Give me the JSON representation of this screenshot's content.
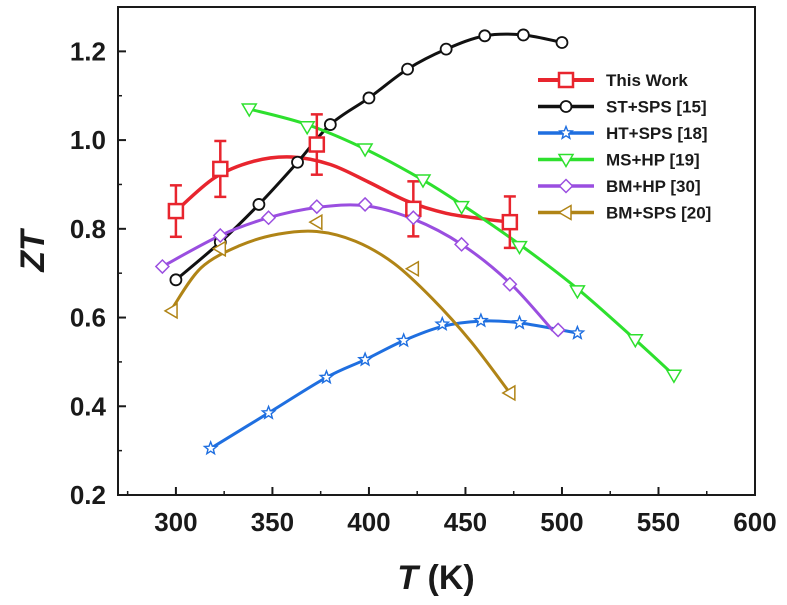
{
  "chart_data": {
    "type": "line",
    "xlabel_italic": "T",
    "xlabel_unit": " (K)",
    "ylabel": "ZT",
    "xlim": [
      270,
      600
    ],
    "ylim": [
      0.2,
      1.3
    ],
    "xticks": [
      300,
      350,
      400,
      450,
      500,
      550,
      600
    ],
    "yticks": [
      0.2,
      0.4,
      0.6,
      0.8,
      1.0,
      1.2
    ],
    "xtick_labels": [
      "300",
      "350",
      "400",
      "450",
      "500",
      "550",
      "600"
    ],
    "ytick_labels": [
      "0.2",
      "0.4",
      "0.6",
      "0.8",
      "1.0",
      "1.2"
    ],
    "legend_position": "top-right",
    "series": [
      {
        "name": "This Work",
        "color": "#e8252e",
        "marker": "square",
        "x": [
          300,
          323,
          373,
          423,
          473
        ],
        "y": [
          0.84,
          0.935,
          0.99,
          0.845,
          0.815
        ],
        "yerr": [
          0.058,
          0.063,
          0.068,
          0.062,
          0.058
        ],
        "curve": [
          [
            300,
            0.84
          ],
          [
            320,
            0.915
          ],
          [
            340,
            0.952
          ],
          [
            360,
            0.962
          ],
          [
            380,
            0.945
          ],
          [
            400,
            0.905
          ],
          [
            420,
            0.862
          ],
          [
            440,
            0.835
          ],
          [
            460,
            0.822
          ],
          [
            473,
            0.815
          ]
        ]
      },
      {
        "name": "ST+SPS [15]",
        "color": "#111111",
        "marker": "circle",
        "x": [
          300,
          323,
          343,
          363,
          380,
          400,
          420,
          440,
          460,
          480,
          500
        ],
        "y": [
          0.685,
          0.77,
          0.855,
          0.95,
          1.035,
          1.095,
          1.16,
          1.205,
          1.235,
          1.237,
          1.22
        ],
        "curve": [
          [
            300,
            0.685
          ],
          [
            323,
            0.77
          ],
          [
            343,
            0.855
          ],
          [
            363,
            0.95
          ],
          [
            380,
            1.035
          ],
          [
            400,
            1.095
          ],
          [
            420,
            1.16
          ],
          [
            440,
            1.205
          ],
          [
            460,
            1.235
          ],
          [
            480,
            1.237
          ],
          [
            500,
            1.22
          ]
        ]
      },
      {
        "name": "HT+SPS [18]",
        "color": "#1f6fe0",
        "marker": "star",
        "x": [
          318,
          348,
          378,
          398,
          418,
          438,
          458,
          478,
          508
        ],
        "y": [
          0.305,
          0.385,
          0.465,
          0.505,
          0.548,
          0.585,
          0.593,
          0.588,
          0.565
        ],
        "curve": [
          [
            318,
            0.305
          ],
          [
            348,
            0.385
          ],
          [
            378,
            0.465
          ],
          [
            398,
            0.505
          ],
          [
            418,
            0.548
          ],
          [
            438,
            0.58
          ],
          [
            458,
            0.592
          ],
          [
            478,
            0.588
          ],
          [
            508,
            0.565
          ]
        ]
      },
      {
        "name": "MS+HP [19]",
        "color": "#2ee02e",
        "marker": "triangle-down",
        "x": [
          338,
          368,
          398,
          428,
          448,
          478,
          508,
          538,
          558
        ],
        "y": [
          1.07,
          1.03,
          0.98,
          0.91,
          0.85,
          0.76,
          0.66,
          0.55,
          0.47
        ],
        "curve": [
          [
            338,
            1.07
          ],
          [
            368,
            1.035
          ],
          [
            398,
            0.98
          ],
          [
            428,
            0.91
          ],
          [
            448,
            0.855
          ],
          [
            478,
            0.765
          ],
          [
            508,
            0.665
          ],
          [
            538,
            0.55
          ],
          [
            558,
            0.47
          ]
        ]
      },
      {
        "name": "BM+HP [30]",
        "color": "#9a4ee0",
        "marker": "diamond",
        "x": [
          293,
          323,
          348,
          373,
          398,
          423,
          448,
          473,
          498
        ],
        "y": [
          0.715,
          0.785,
          0.825,
          0.85,
          0.855,
          0.825,
          0.765,
          0.675,
          0.572
        ],
        "curve": [
          [
            293,
            0.715
          ],
          [
            323,
            0.785
          ],
          [
            348,
            0.825
          ],
          [
            373,
            0.848
          ],
          [
            398,
            0.852
          ],
          [
            423,
            0.822
          ],
          [
            448,
            0.765
          ],
          [
            473,
            0.678
          ],
          [
            495,
            0.572
          ]
        ]
      },
      {
        "name": "BM+SPS [20]",
        "color": "#b08416",
        "marker": "triangle-left",
        "x": [
          298,
          323,
          373,
          423,
          473
        ],
        "y": [
          0.615,
          0.755,
          0.815,
          0.71,
          0.43
        ],
        "curve": [
          [
            298,
            0.62
          ],
          [
            313,
            0.712
          ],
          [
            333,
            0.762
          ],
          [
            353,
            0.788
          ],
          [
            373,
            0.794
          ],
          [
            393,
            0.772
          ],
          [
            413,
            0.722
          ],
          [
            433,
            0.642
          ],
          [
            453,
            0.545
          ],
          [
            473,
            0.43
          ]
        ]
      }
    ]
  }
}
